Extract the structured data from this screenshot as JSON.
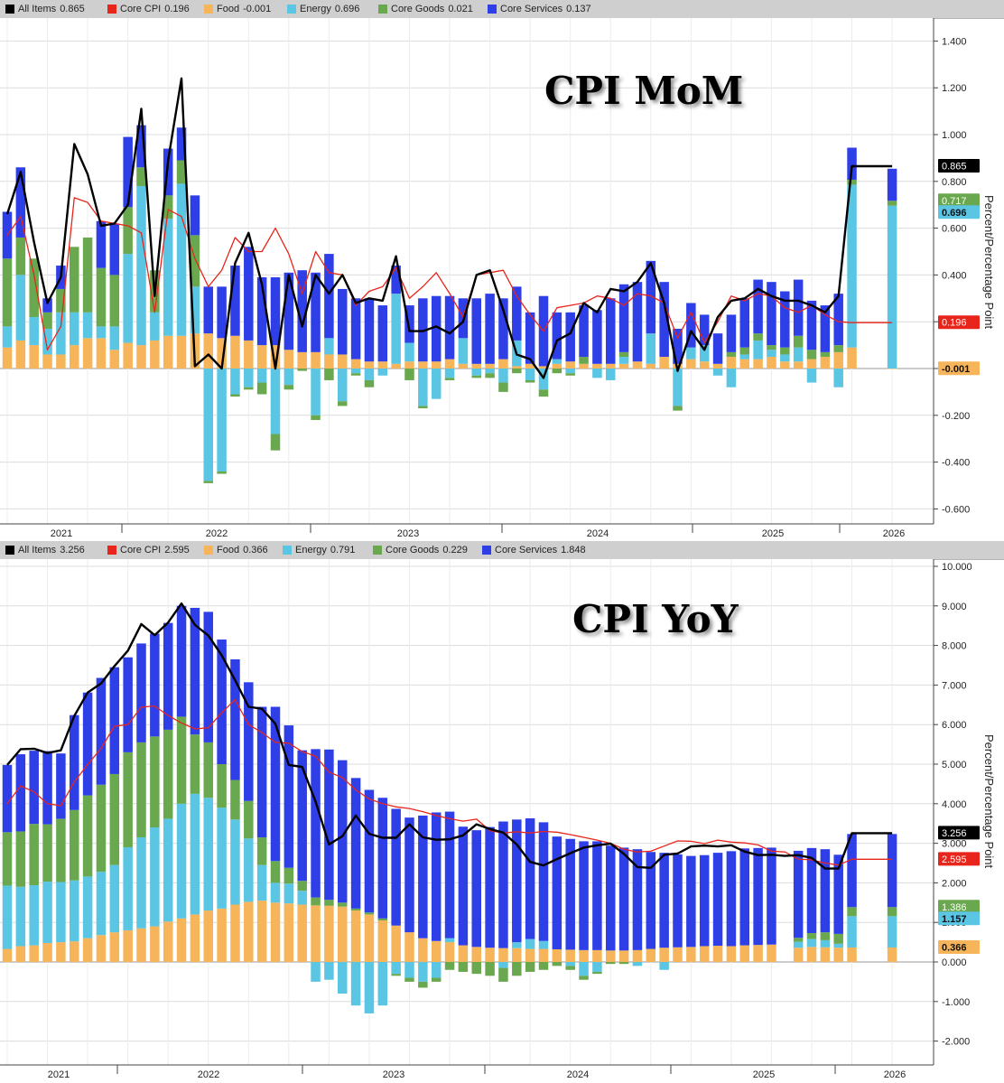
{
  "colors": {
    "all_items": "#000000",
    "core_cpi": "#e8251b",
    "food": "#f6b55a",
    "energy": "#5bc5e4",
    "core_goods": "#6aa84f",
    "core_services": "#2f3fe8"
  },
  "chart_data": [
    {
      "type": "bar",
      "title": "CPI MoM",
      "ylabel": "Percent/Percentage Point",
      "ylim": [
        -0.65,
        1.45
      ],
      "yticks": [
        "1.400",
        "1.200",
        "1.000",
        "0.800",
        "0.600",
        "0.400",
        "0.200",
        "0.000",
        "-0.200",
        "-0.400",
        "-0.600"
      ],
      "x_start": "2021-01",
      "x_end": "2026-01",
      "year_labels": [
        "2021",
        "2022",
        "2023",
        "2024",
        "2025",
        "2026"
      ],
      "legend": [
        {
          "name": "All Items",
          "value": "0.865"
        },
        {
          "name": "Core CPI",
          "value": "0.196"
        },
        {
          "name": "Food",
          "value": "-0.001"
        },
        {
          "name": "Energy",
          "value": "0.696"
        },
        {
          "name": "Core Goods",
          "value": "0.021"
        },
        {
          "name": "Core Services",
          "value": "0.137"
        }
      ],
      "end_labels": [
        {
          "text": "0.865",
          "value": 0.865,
          "color": "#000000"
        },
        {
          "text": "0.717",
          "value": 0.717,
          "color": "#6aa84f"
        },
        {
          "text": "0.696",
          "value": 0.696,
          "color": "#5bc5e4"
        },
        {
          "text": "0.196",
          "value": 0.196,
          "color": "#e8251b"
        },
        {
          "text": "-0.001",
          "value": -0.001,
          "color": "#f6b55a"
        }
      ],
      "series": [
        {
          "name": "Food",
          "values": [
            0.09,
            0.12,
            0.1,
            0.06,
            0.06,
            0.1,
            0.13,
            0.13,
            0.08,
            0.11,
            0.1,
            0.12,
            0.14,
            0.14,
            0.15,
            0.15,
            0.13,
            0.14,
            0.12,
            0.1,
            0.1,
            0.08,
            0.07,
            0.07,
            0.06,
            0.06,
            0.04,
            0.03,
            0.03,
            0.02,
            0.03,
            0.03,
            0.03,
            0.04,
            0.02,
            0.02,
            0.02,
            0.04,
            0.01,
            0.02,
            0.01,
            0.02,
            0.03,
            0.02,
            0.02,
            0.02,
            0.02,
            0.03,
            0.02,
            0.05,
            0.02,
            0.04,
            0.03,
            0.02,
            0.05,
            0.04,
            0.04,
            0.05,
            0.03,
            0.03,
            0.04,
            0.05,
            0.07,
            0.09,
            0.0,
            0.0,
            -0.001
          ]
        },
        {
          "name": "Energy",
          "values": [
            0.09,
            0.28,
            0.12,
            0.11,
            0.18,
            0.14,
            0.11,
            0.05,
            0.1,
            0.38,
            0.68,
            0.12,
            0.5,
            0.65,
            0.2,
            -0.48,
            -0.44,
            -0.11,
            -0.08,
            -0.06,
            -0.28,
            -0.07,
            0.0,
            -0.2,
            0.07,
            -0.14,
            -0.02,
            -0.05,
            -0.03,
            0.3,
            0.08,
            -0.16,
            -0.13,
            -0.04,
            0.11,
            -0.03,
            -0.02,
            -0.06,
            0.11,
            -0.05,
            -0.09,
            0.02,
            -0.02,
            0.0,
            -0.04,
            -0.05,
            0.03,
            0.0,
            0.13,
            0.0,
            -0.16,
            0.05,
            0.07,
            -0.03,
            -0.08,
            0.02,
            0.08,
            0.03,
            0.03,
            0.06,
            -0.06,
            0.0,
            -0.08,
            0.696,
            0.0,
            0.0,
            0.696
          ]
        },
        {
          "name": "Core Goods",
          "values": [
            0.29,
            0.16,
            0.25,
            0.07,
            0.1,
            0.28,
            0.32,
            0.25,
            0.22,
            0.2,
            0.08,
            0.18,
            0.1,
            0.1,
            0.22,
            -0.01,
            -0.01,
            -0.01,
            -0.01,
            -0.05,
            -0.07,
            -0.02,
            -0.01,
            -0.02,
            -0.05,
            -0.02,
            -0.01,
            -0.03,
            0.0,
            0.0,
            -0.05,
            -0.01,
            0.0,
            -0.01,
            0.0,
            -0.01,
            -0.02,
            -0.04,
            -0.02,
            -0.01,
            -0.03,
            -0.02,
            -0.01,
            0.03,
            0.0,
            0.0,
            0.02,
            0.0,
            0.0,
            0.0,
            -0.02,
            0.0,
            0.0,
            0.0,
            0.02,
            0.03,
            0.03,
            0.02,
            0.03,
            0.05,
            0.04,
            0.02,
            0.03,
            0.021,
            0.0,
            0.0,
            0.021
          ]
        },
        {
          "name": "Core Services",
          "values": [
            0.2,
            0.3,
            0.0,
            0.06,
            0.1,
            0.0,
            0.0,
            0.2,
            0.22,
            0.3,
            0.18,
            0.0,
            0.2,
            0.14,
            0.17,
            0.2,
            0.22,
            0.3,
            0.4,
            0.29,
            0.29,
            0.33,
            0.35,
            0.34,
            0.36,
            0.28,
            0.26,
            0.27,
            0.24,
            0.12,
            0.16,
            0.27,
            0.28,
            0.27,
            0.17,
            0.28,
            0.3,
            0.26,
            0.23,
            0.22,
            0.3,
            0.2,
            0.21,
            0.22,
            0.23,
            0.28,
            0.29,
            0.34,
            0.31,
            0.32,
            0.15,
            0.19,
            0.13,
            0.13,
            0.16,
            0.21,
            0.23,
            0.27,
            0.24,
            0.24,
            0.21,
            0.2,
            0.22,
            0.137,
            0.0,
            0.0,
            0.137
          ]
        },
        {
          "name": "All Items",
          "values": [
            0.66,
            0.84,
            0.54,
            0.28,
            0.39,
            0.96,
            0.83,
            0.61,
            0.62,
            0.7,
            1.11,
            0.31,
            0.89,
            1.24,
            0.01,
            0.06,
            0.0,
            0.45,
            0.58,
            0.36,
            0.0,
            0.4,
            0.18,
            0.4,
            0.32,
            0.4,
            0.28,
            0.3,
            0.29,
            0.48,
            0.16,
            0.16,
            0.18,
            0.15,
            0.2,
            0.4,
            0.42,
            0.25,
            0.06,
            0.04,
            -0.04,
            0.12,
            0.15,
            0.28,
            0.24,
            0.34,
            0.33,
            0.37,
            0.45,
            0.28,
            -0.01,
            0.16,
            0.08,
            0.22,
            0.29,
            0.3,
            0.34,
            0.31,
            0.29,
            0.29,
            0.27,
            0.24,
            0.31,
            0.865,
            0.0,
            0.0,
            0.865
          ]
        },
        {
          "name": "Core CPI",
          "values": [
            0.57,
            0.65,
            0.4,
            0.08,
            0.18,
            0.73,
            0.71,
            0.63,
            0.62,
            0.61,
            0.58,
            0.24,
            0.68,
            0.65,
            0.47,
            0.35,
            0.42,
            0.56,
            0.5,
            0.5,
            0.6,
            0.49,
            0.32,
            0.5,
            0.41,
            0.4,
            0.27,
            0.33,
            0.35,
            0.43,
            0.3,
            0.35,
            0.41,
            0.32,
            0.22,
            0.4,
            0.41,
            0.42,
            0.31,
            0.23,
            0.16,
            0.26,
            0.27,
            0.28,
            0.31,
            0.3,
            0.27,
            0.32,
            0.31,
            0.28,
            0.13,
            0.24,
            0.11,
            0.2,
            0.31,
            0.29,
            0.32,
            0.31,
            0.26,
            0.24,
            0.27,
            0.23,
            0.2,
            0.196,
            0.0,
            0.0,
            0.196
          ]
        }
      ]
    },
    {
      "type": "bar",
      "title": "CPI YoY",
      "ylabel": "Percent/Percentage Point",
      "ylim": [
        -2.6,
        10.3
      ],
      "yticks": [
        "10.000",
        "9.000",
        "8.000",
        "7.000",
        "6.000",
        "5.000",
        "4.000",
        "3.000",
        "2.000",
        "1.000",
        "0.000",
        "-1.000",
        "-2.000"
      ],
      "x_start": "2021-01",
      "x_end": "2026-01",
      "year_labels": [
        "2021",
        "2022",
        "2023",
        "2024",
        "2025",
        "2026"
      ],
      "legend": [
        {
          "name": "All Items",
          "value": "3.256"
        },
        {
          "name": "Core CPI",
          "value": "2.595"
        },
        {
          "name": "Food",
          "value": "0.366"
        },
        {
          "name": "Energy",
          "value": "0.791"
        },
        {
          "name": "Core Goods",
          "value": "0.229"
        },
        {
          "name": "Core Services",
          "value": "1.848"
        }
      ],
      "end_labels": [
        {
          "text": "3.256",
          "value": 3.256,
          "color": "#000000"
        },
        {
          "text": "2.595",
          "value": 2.595,
          "color": "#e8251b"
        },
        {
          "text": "1.386",
          "value": 1.386,
          "color": "#6aa84f"
        },
        {
          "text": "1.157",
          "value": 1.157,
          "color": "#5bc5e4"
        },
        {
          "text": "0.366",
          "value": 0.366,
          "color": "#f6b55a"
        }
      ],
      "series": [
        {
          "name": "Food",
          "values": [
            0.33,
            0.4,
            0.42,
            0.48,
            0.5,
            0.52,
            0.6,
            0.68,
            0.75,
            0.8,
            0.85,
            0.9,
            1.02,
            1.1,
            1.2,
            1.3,
            1.35,
            1.45,
            1.52,
            1.55,
            1.5,
            1.48,
            1.45,
            1.43,
            1.42,
            1.4,
            1.3,
            1.2,
            1.05,
            0.92,
            0.75,
            0.6,
            0.53,
            0.5,
            0.42,
            0.38,
            0.36,
            0.35,
            0.35,
            0.33,
            0.33,
            0.32,
            0.31,
            0.3,
            0.3,
            0.29,
            0.29,
            0.3,
            0.33,
            0.36,
            0.37,
            0.38,
            0.4,
            0.41,
            0.4,
            0.42,
            0.43,
            0.44,
            0.0,
            0.36,
            0.38,
            0.37,
            0.36,
            0.366,
            0.0,
            0.0,
            0.366
          ]
        },
        {
          "name": "Energy",
          "values": [
            1.6,
            1.5,
            1.52,
            1.55,
            1.52,
            1.54,
            1.56,
            1.6,
            1.7,
            2.1,
            2.3,
            2.5,
            2.6,
            2.9,
            3.05,
            2.85,
            2.55,
            2.15,
            1.6,
            0.9,
            0.5,
            0.5,
            0.35,
            -0.5,
            -0.45,
            -0.8,
            -1.1,
            -1.3,
            -1.1,
            -0.3,
            -0.4,
            -0.5,
            -0.4,
            0.1,
            0.0,
            0.0,
            0.0,
            -0.15,
            0.15,
            0.25,
            0.2,
            0.0,
            -0.1,
            -0.35,
            -0.25,
            0.0,
            0.0,
            -0.1,
            0.0,
            -0.2,
            0.0,
            0.0,
            0.0,
            0.0,
            0.0,
            0.0,
            0.0,
            0.0,
            0.0,
            0.15,
            0.2,
            0.18,
            0.1,
            0.791,
            0.0,
            0.0,
            0.791
          ]
        },
        {
          "name": "Core Goods",
          "values": [
            1.35,
            1.4,
            1.55,
            1.45,
            1.6,
            1.78,
            2.05,
            2.2,
            2.3,
            2.4,
            2.4,
            2.3,
            2.25,
            2.2,
            1.5,
            1.4,
            1.1,
            1.0,
            0.95,
            0.7,
            0.55,
            0.4,
            0.25,
            0.2,
            0.15,
            0.1,
            0.05,
            0.05,
            0.05,
            -0.05,
            -0.1,
            -0.15,
            -0.1,
            -0.2,
            -0.25,
            -0.3,
            -0.35,
            -0.35,
            -0.35,
            -0.25,
            -0.2,
            -0.1,
            -0.1,
            -0.1,
            -0.05,
            -0.05,
            -0.05,
            0.0,
            0.0,
            0.0,
            0.0,
            0.0,
            0.0,
            0.0,
            0.0,
            0.0,
            0.0,
            0.0,
            0.0,
            0.1,
            0.15,
            0.2,
            0.25,
            0.229,
            0.0,
            0.0,
            0.229
          ]
        },
        {
          "name": "Core Services",
          "values": [
            1.7,
            1.95,
            1.85,
            1.85,
            1.65,
            2.4,
            2.6,
            2.7,
            2.7,
            2.4,
            2.5,
            2.6,
            2.7,
            2.8,
            3.2,
            3.3,
            3.15,
            3.05,
            3.0,
            3.3,
            3.9,
            3.6,
            3.3,
            3.75,
            3.8,
            3.6,
            3.3,
            3.1,
            3.05,
            2.95,
            2.9,
            3.1,
            3.25,
            3.2,
            3.0,
            2.95,
            3.05,
            3.2,
            3.1,
            3.05,
            3.0,
            2.85,
            2.8,
            2.75,
            2.75,
            2.65,
            2.6,
            2.55,
            2.45,
            2.4,
            2.35,
            2.3,
            2.3,
            2.35,
            2.4,
            2.45,
            2.45,
            2.45,
            0.0,
            2.2,
            2.15,
            2.1,
            2.0,
            1.848,
            0.0,
            0.0,
            1.848
          ]
        },
        {
          "name": "All Items",
          "values": [
            4.98,
            5.38,
            5.39,
            5.28,
            5.35,
            6.22,
            6.81,
            7.04,
            7.48,
            7.87,
            8.54,
            8.26,
            8.58,
            9.06,
            8.52,
            8.25,
            7.75,
            7.12,
            6.45,
            6.4,
            6.02,
            4.98,
            4.93,
            4.05,
            2.97,
            3.18,
            3.7,
            3.24,
            3.14,
            3.14,
            3.48,
            3.15,
            3.09,
            3.1,
            3.2,
            3.48,
            3.36,
            3.27,
            2.97,
            2.53,
            2.44,
            2.6,
            2.75,
            2.89,
            2.95,
            2.99,
            2.73,
            2.4,
            2.38,
            2.71,
            2.74,
            2.92,
            2.94,
            2.92,
            2.95,
            2.79,
            2.7,
            2.71,
            2.68,
            2.7,
            2.63,
            2.36,
            2.36,
            3.256,
            0.0,
            0.0,
            3.256
          ]
        },
        {
          "name": "Core CPI",
          "values": [
            4.0,
            4.45,
            4.3,
            4.0,
            3.95,
            4.55,
            4.99,
            5.4,
            5.96,
            6.0,
            6.44,
            6.47,
            6.23,
            6.04,
            5.89,
            5.92,
            6.3,
            6.63,
            6.0,
            5.8,
            5.55,
            5.53,
            5.32,
            5.2,
            4.8,
            4.66,
            4.35,
            4.12,
            4.0,
            3.92,
            3.88,
            3.8,
            3.7,
            3.62,
            3.56,
            3.61,
            3.32,
            3.26,
            3.29,
            3.26,
            3.3,
            3.28,
            3.22,
            3.15,
            3.08,
            3.0,
            2.85,
            2.78,
            2.8,
            2.93,
            3.06,
            3.05,
            2.99,
            3.08,
            3.03,
            3.01,
            2.96,
            2.8,
            2.78,
            2.6,
            2.58,
            2.5,
            2.45,
            2.595,
            0.0,
            0.0,
            2.595
          ]
        }
      ]
    }
  ]
}
